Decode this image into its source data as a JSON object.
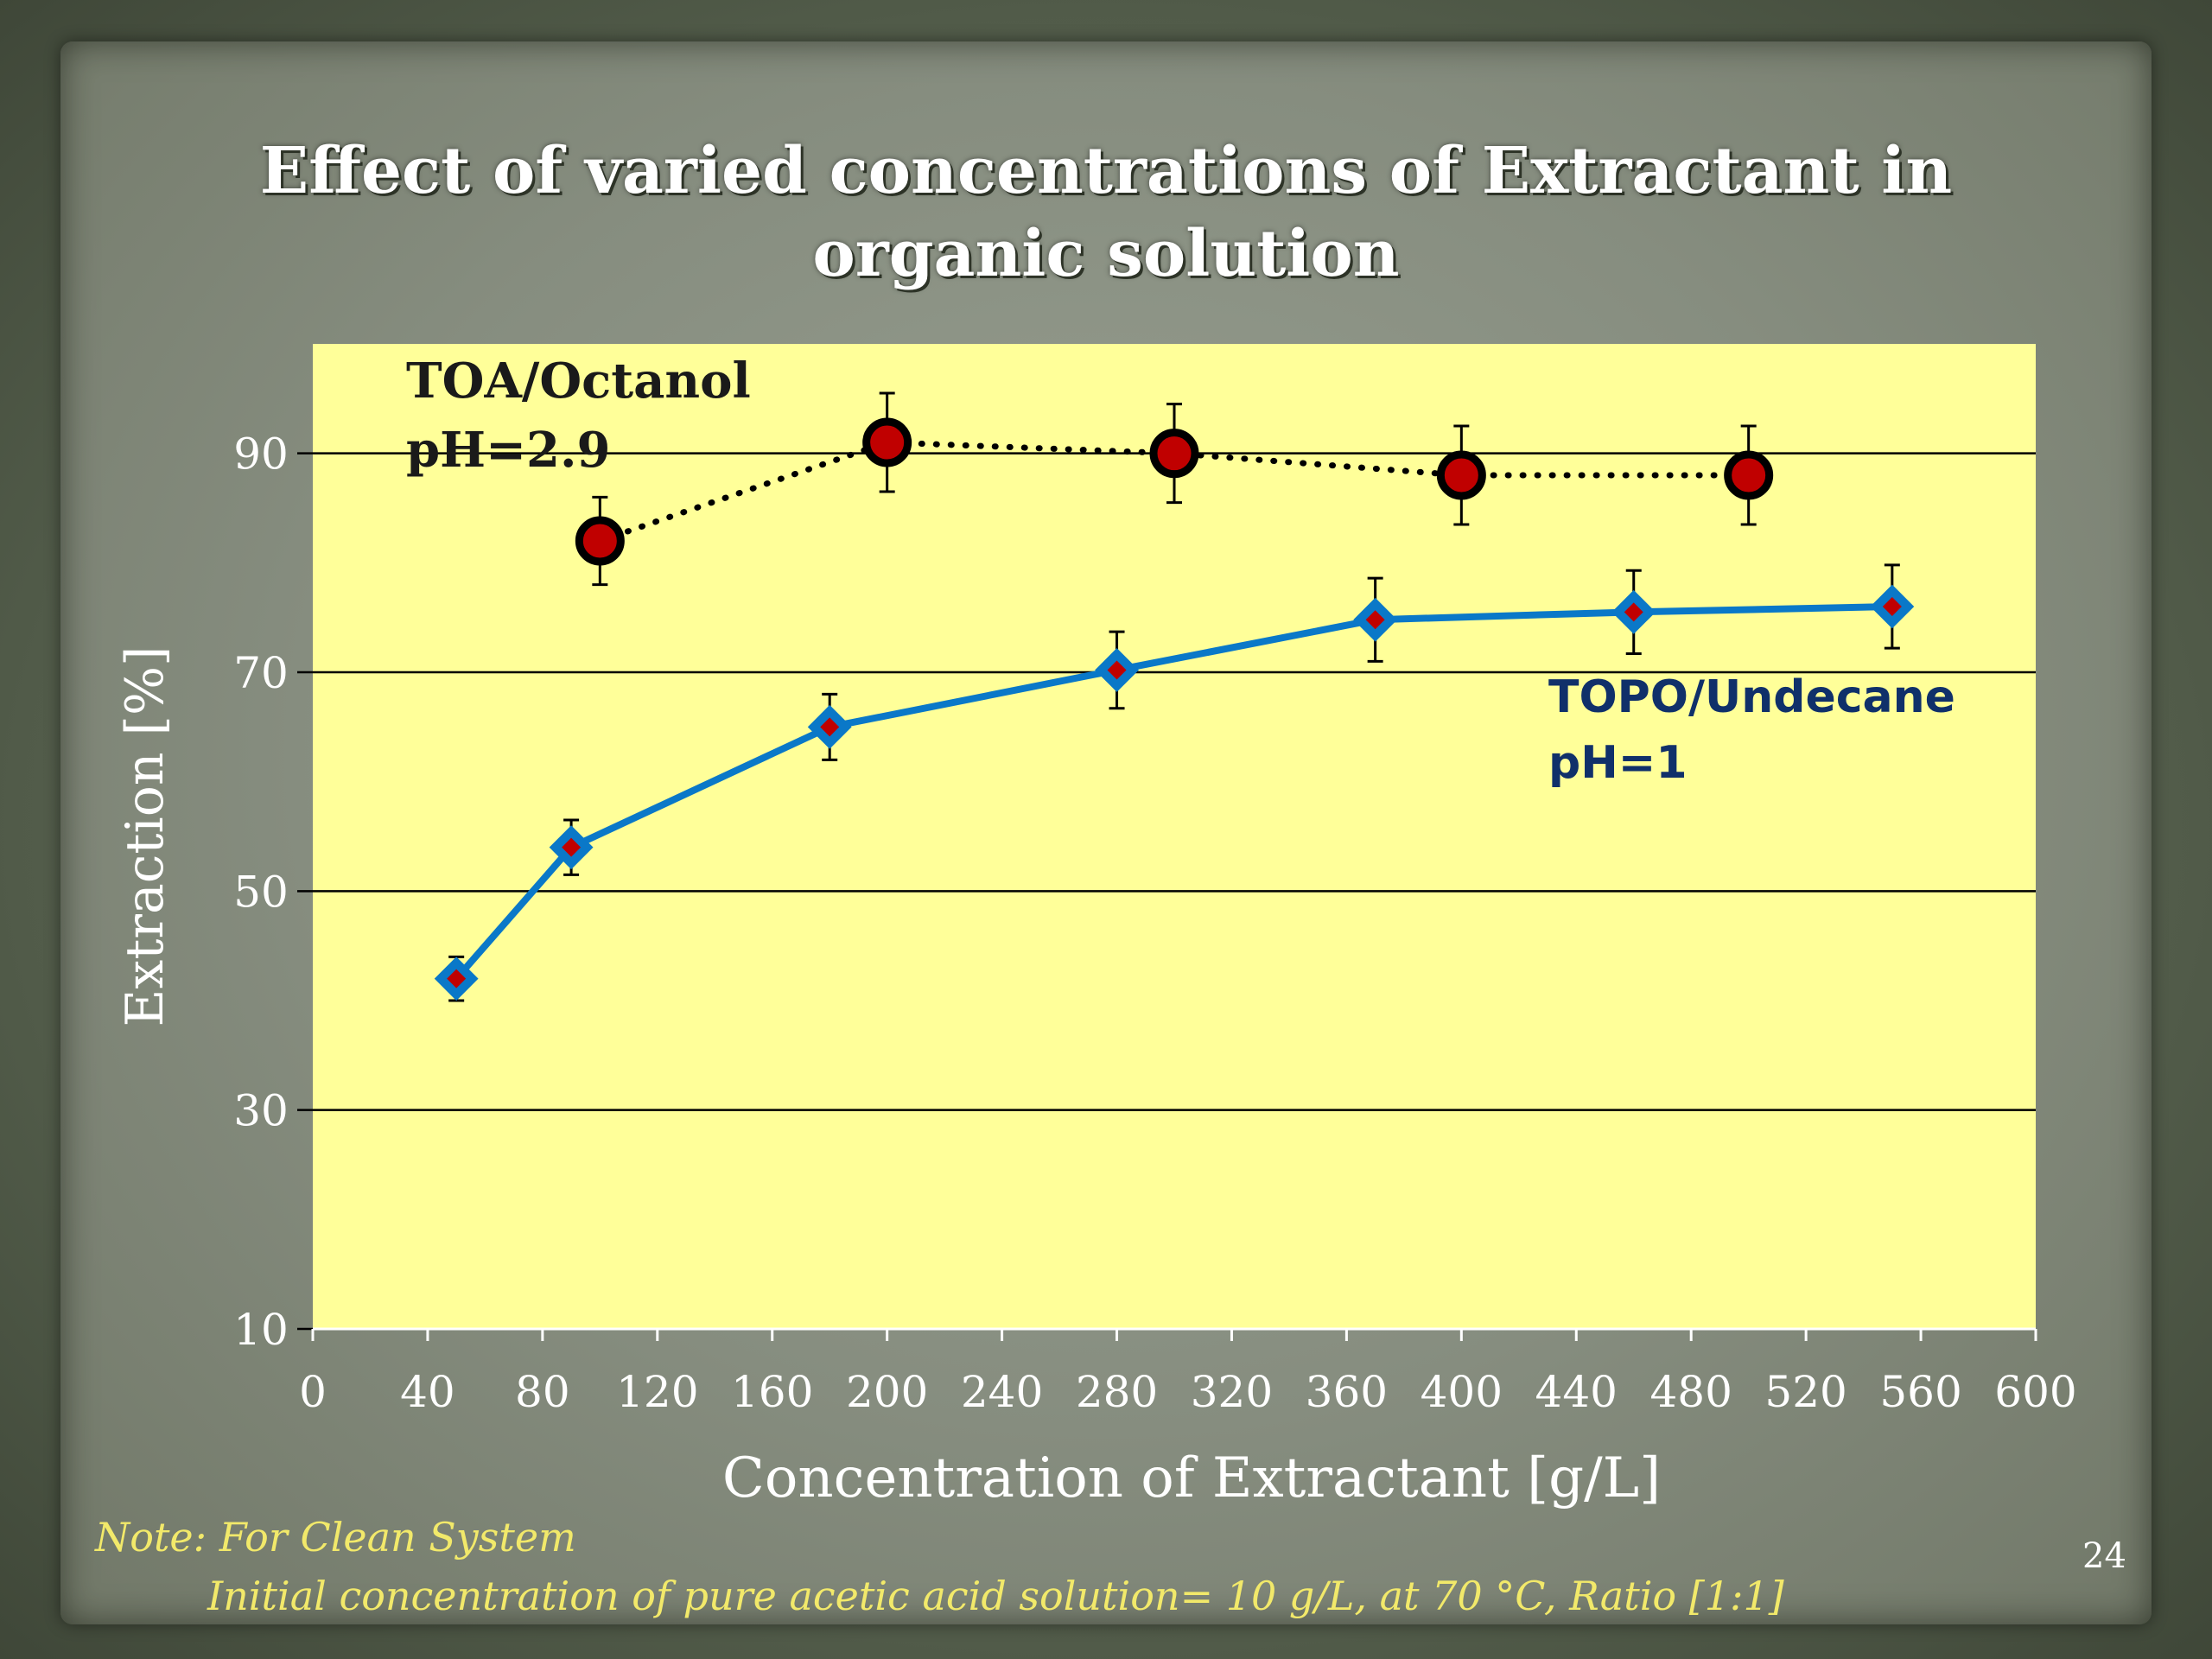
{
  "title_line1": "Effect of varied concentrations of Extractant  in",
  "title_line2": "organic solution",
  "note_line1": "Note: For Clean System",
  "note_line2": "Initial concentration of pure acetic acid solution= 10 g/L, at 70  °C, Ratio [1:1]",
  "page_number": "24",
  "chart_data": {
    "type": "line",
    "title": "Effect of varied concentrations of Extractant  in organic solution",
    "xlabel": "Concentration of Extractant [g/L]",
    "ylabel": "Extraction [%]",
    "xlim": [
      0,
      600
    ],
    "ylim": [
      10,
      100
    ],
    "x_ticks": [
      0,
      40,
      80,
      120,
      160,
      200,
      240,
      280,
      320,
      360,
      400,
      440,
      480,
      520,
      560,
      600
    ],
    "y_ticks": [
      10,
      30,
      50,
      70,
      90
    ],
    "grid": "horizontal at labeled y ticks",
    "plot_background": "#ffff99",
    "series": [
      {
        "label_lines": [
          "TOA/Octanol",
          "pH=2.9"
        ],
        "line_style": "dotted",
        "line_color": "#000000",
        "marker": "circle",
        "marker_fill": "#c00000",
        "points": [
          {
            "x": 100,
            "y": 82,
            "err": 4
          },
          {
            "x": 200,
            "y": 91,
            "err": 4.5
          },
          {
            "x": 300,
            "y": 90,
            "err": 4.5
          },
          {
            "x": 400,
            "y": 88,
            "err": 4.5
          },
          {
            "x": 500,
            "y": 88,
            "err": 4.5
          }
        ]
      },
      {
        "label_lines": [
          "TOPO/Undecane",
          "pH=1"
        ],
        "line_style": "solid",
        "line_color": "#0a78c8",
        "marker": "diamond",
        "marker_fill": "#c00000",
        "points": [
          {
            "x": 50,
            "y": 42,
            "err": 2
          },
          {
            "x": 90,
            "y": 54,
            "err": 2.5
          },
          {
            "x": 180,
            "y": 65,
            "err": 3
          },
          {
            "x": 280,
            "y": 70.2,
            "err": 3.5
          },
          {
            "x": 370,
            "y": 74.8,
            "err": 3.8
          },
          {
            "x": 460,
            "y": 75.5,
            "err": 3.8
          },
          {
            "x": 550,
            "y": 76,
            "err": 3.8
          }
        ]
      }
    ]
  }
}
